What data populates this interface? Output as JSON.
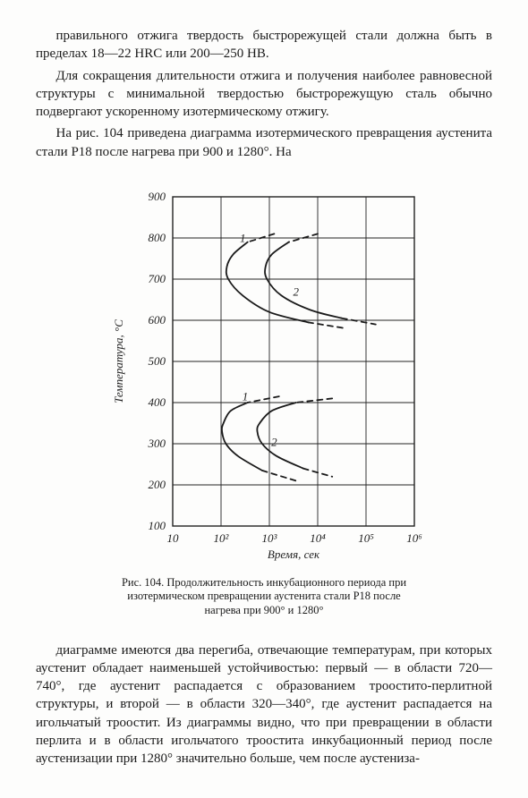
{
  "para1": "правильного отжига твердость быстрорежущей стали должна быть в пределах 18—22 HRC или 200—250 HB.",
  "para2": "Для сокращения длительности отжига и получения наиболее равновесной структуры с минимальной твердостью быстрорежущую сталь обычно подвергают ускоренному изотермическому отжигу.",
  "para3": "На рис. 104 приведена диаграмма изотермического превращения аустенита стали Р18 после нагрева при 900 и 1280°. На",
  "para4": "диаграмме имеются два перегиба, отвечающие температурам, при которых аустенит обладает наименьшей устойчивостью: первый — в области 720—740°, где аустенит распадается с образованием троостито-перлитной структуры, и второй — в области 320—340°, где аустенит распадается на игольчатый троостит. Из диаграммы видно, что при превращении в области перлита и в области игольчатого троостита инкубационный период после аустенизации при 1280° значительно больше, чем после аустениза-",
  "caption": "Рис. 104. Продолжительность инкубационного периода при изотермическом превращении аустенита стали Р18 после нагрева при 900° и 1280°",
  "chart": {
    "type": "line",
    "background_color": "#fdfdfc",
    "axis_color": "#222222",
    "grid_color": "#222222",
    "line_width_frame": 1.4,
    "line_width_grid": 0.9,
    "line_width_curve": 1.8,
    "ylabel": "Температура, °C",
    "xlabel": "Время, сек",
    "ylim": [
      100,
      900
    ],
    "yticks": [
      100,
      200,
      300,
      400,
      500,
      600,
      700,
      800,
      900
    ],
    "yticklabels": [
      "100",
      "200",
      "300",
      "400",
      "500",
      "600",
      "700",
      "800",
      "900"
    ],
    "x_log_exponents": [
      1,
      2,
      3,
      4,
      5,
      6
    ],
    "xticklabels": [
      "10",
      "10²",
      "10³",
      "10⁴",
      "10⁵",
      "10⁶"
    ],
    "label_fontsize": 13,
    "tick_fontsize": 13,
    "curve_color": "#1a1a1a",
    "dash_pattern": "6,5",
    "upper_curve1": [
      {
        "logx": 3.1,
        "y": 810
      },
      {
        "logx": 2.55,
        "y": 790
      },
      {
        "logx": 2.25,
        "y": 760
      },
      {
        "logx": 2.12,
        "y": 730
      },
      {
        "logx": 2.15,
        "y": 700
      },
      {
        "logx": 2.45,
        "y": 660
      },
      {
        "logx": 3.0,
        "y": 620
      },
      {
        "logx": 3.8,
        "y": 595
      },
      {
        "logx": 4.6,
        "y": 580
      }
    ],
    "upper_curve1_dash_cut": 0.1,
    "upper_curve2": [
      {
        "logx": 4.0,
        "y": 810
      },
      {
        "logx": 3.4,
        "y": 790
      },
      {
        "logx": 3.05,
        "y": 760
      },
      {
        "logx": 2.92,
        "y": 730
      },
      {
        "logx": 2.95,
        "y": 700
      },
      {
        "logx": 3.25,
        "y": 660
      },
      {
        "logx": 3.85,
        "y": 625
      },
      {
        "logx": 4.5,
        "y": 605
      },
      {
        "logx": 5.2,
        "y": 590
      }
    ],
    "upper_curve2_dash_cut": 0.1,
    "lower_curve1": [
      {
        "logx": 3.2,
        "y": 415
      },
      {
        "logx": 2.55,
        "y": 400
      },
      {
        "logx": 2.2,
        "y": 380
      },
      {
        "logx": 2.05,
        "y": 350
      },
      {
        "logx": 2.02,
        "y": 330
      },
      {
        "logx": 2.1,
        "y": 300
      },
      {
        "logx": 2.35,
        "y": 270
      },
      {
        "logx": 2.85,
        "y": 235
      },
      {
        "logx": 3.55,
        "y": 210
      }
    ],
    "lower_curve1_dash_cut": 0.1,
    "lower_curve2": [
      {
        "logx": 4.3,
        "y": 410
      },
      {
        "logx": 3.55,
        "y": 400
      },
      {
        "logx": 3.05,
        "y": 380
      },
      {
        "logx": 2.8,
        "y": 350
      },
      {
        "logx": 2.75,
        "y": 330
      },
      {
        "logx": 2.85,
        "y": 300
      },
      {
        "logx": 3.15,
        "y": 270
      },
      {
        "logx": 3.7,
        "y": 240
      },
      {
        "logx": 4.3,
        "y": 220
      }
    ],
    "lower_curve2_dash_cut": 0.1,
    "curve_labels": [
      {
        "text": "1",
        "logx": 2.45,
        "y": 790
      },
      {
        "text": "2",
        "logx": 3.55,
        "y": 660
      },
      {
        "text": "1",
        "logx": 2.5,
        "y": 405
      },
      {
        "text": "2",
        "logx": 3.1,
        "y": 295
      }
    ]
  }
}
